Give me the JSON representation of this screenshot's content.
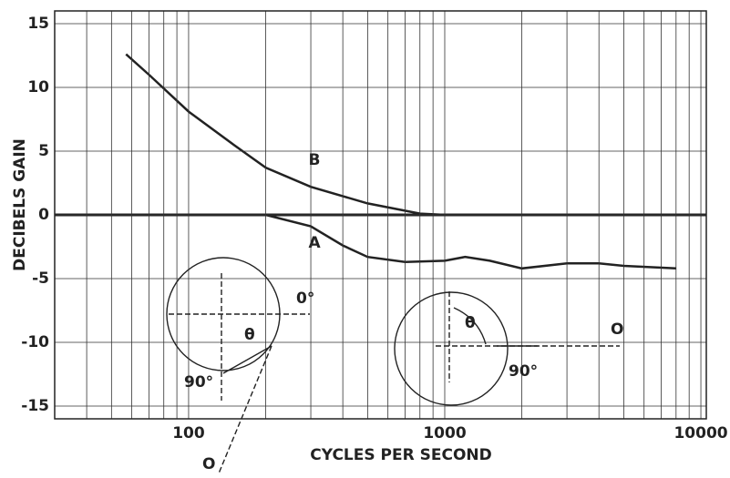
{
  "chart_data": {
    "type": "line",
    "xlabel": "CYCLES PER SECOND",
    "ylabel": "DECIBELS GAIN",
    "xscale": "log",
    "xlim": [
      30,
      10500
    ],
    "ylim": [
      -16,
      16
    ],
    "xticks": [
      100,
      1000,
      10000
    ],
    "xminorticks": [
      40,
      50,
      60,
      70,
      80,
      90,
      200,
      300,
      400,
      500,
      600,
      700,
      800,
      900,
      2000,
      3000,
      4000,
      5000,
      6000,
      7000,
      8000,
      9000
    ],
    "yticks": [
      15,
      10,
      5,
      0,
      -5,
      -10,
      -15
    ],
    "grid": true,
    "zero_line": true,
    "color": "#222",
    "series": [
      {
        "name": "B",
        "x": [
          57,
          70,
          100,
          150,
          200,
          300,
          500,
          800,
          1000
        ],
        "values": [
          12.6,
          11,
          8.1,
          5.5,
          3.7,
          2.2,
          0.9,
          0.1,
          0
        ]
      },
      {
        "name": "A",
        "x": [
          30,
          100,
          200,
          300,
          400,
          500,
          700,
          1000,
          1200,
          1500,
          2000,
          3000,
          4000,
          5000,
          8000
        ],
        "values": [
          0,
          0,
          0,
          -0.9,
          -2.4,
          -3.3,
          -3.7,
          -3.6,
          -3.3,
          -3.6,
          -4.2,
          -3.8,
          -3.8,
          -4.0,
          -4.2
        ]
      }
    ],
    "annotations": [
      "0°",
      "θ",
      "90°",
      "O",
      "θ",
      "90°",
      "O"
    ]
  }
}
